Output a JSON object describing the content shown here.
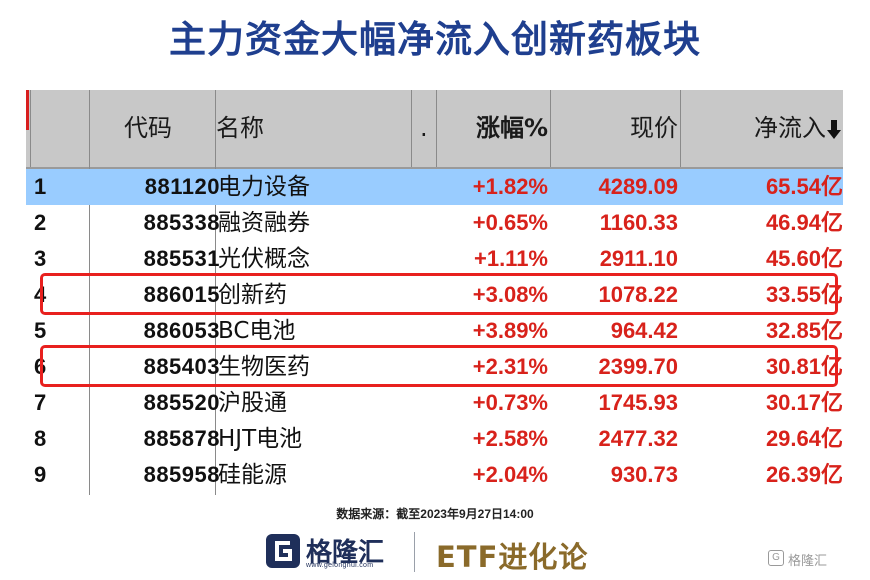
{
  "title": "主力资金大幅净流入创新药板块",
  "table": {
    "headers": {
      "code": "代码",
      "name": "名称",
      "dot": ".",
      "change": "涨幅%",
      "price": "现价",
      "net_inflow": "净流入",
      "sort_icon": "arrow-down-icon"
    },
    "rows": [
      {
        "idx": "1",
        "code": "881120",
        "name": "电力设备",
        "change": "+1.82%",
        "price": "4289.09",
        "net_inflow": "65.54亿"
      },
      {
        "idx": "2",
        "code": "885338",
        "name": "融资融券",
        "change": "+0.65%",
        "price": "1160.33",
        "net_inflow": "46.94亿"
      },
      {
        "idx": "3",
        "code": "885531",
        "name": "光伏概念",
        "change": "+1.11%",
        "price": "2911.10",
        "net_inflow": "45.60亿"
      },
      {
        "idx": "4",
        "code": "886015",
        "name": "创新药",
        "change": "+3.08%",
        "price": "1078.22",
        "net_inflow": "33.55亿"
      },
      {
        "idx": "5",
        "code": "886053",
        "name": "BC电池",
        "change": "+3.89%",
        "price": "964.42",
        "net_inflow": "32.85亿"
      },
      {
        "idx": "6",
        "code": "885403",
        "name": "生物医药",
        "change": "+2.31%",
        "price": "2399.70",
        "net_inflow": "30.81亿"
      },
      {
        "idx": "7",
        "code": "885520",
        "name": "沪股通",
        "change": "+0.73%",
        "price": "1745.93",
        "net_inflow": "30.17亿"
      },
      {
        "idx": "8",
        "code": "885878",
        "name": "HJT电池",
        "change": "+2.58%",
        "price": "2477.32",
        "net_inflow": "29.64亿"
      },
      {
        "idx": "9",
        "code": "885958",
        "name": "硅能源",
        "change": "+2.04%",
        "price": "930.73",
        "net_inflow": "26.39亿"
      }
    ],
    "selected_row": "1",
    "highlighted_rows": [
      "4",
      "6"
    ]
  },
  "source": "数据来源：截至2023年9月27日14:00",
  "footer": {
    "logo_text": "格隆汇",
    "logo_url": "www.gelonghui.com",
    "brand": "ETF进化论",
    "watermark": "格隆汇"
  },
  "colors": {
    "title": "#1f3f8f",
    "positive": "#d8221b",
    "selection": "#99ccff",
    "highlight_border": "#e8201e"
  }
}
